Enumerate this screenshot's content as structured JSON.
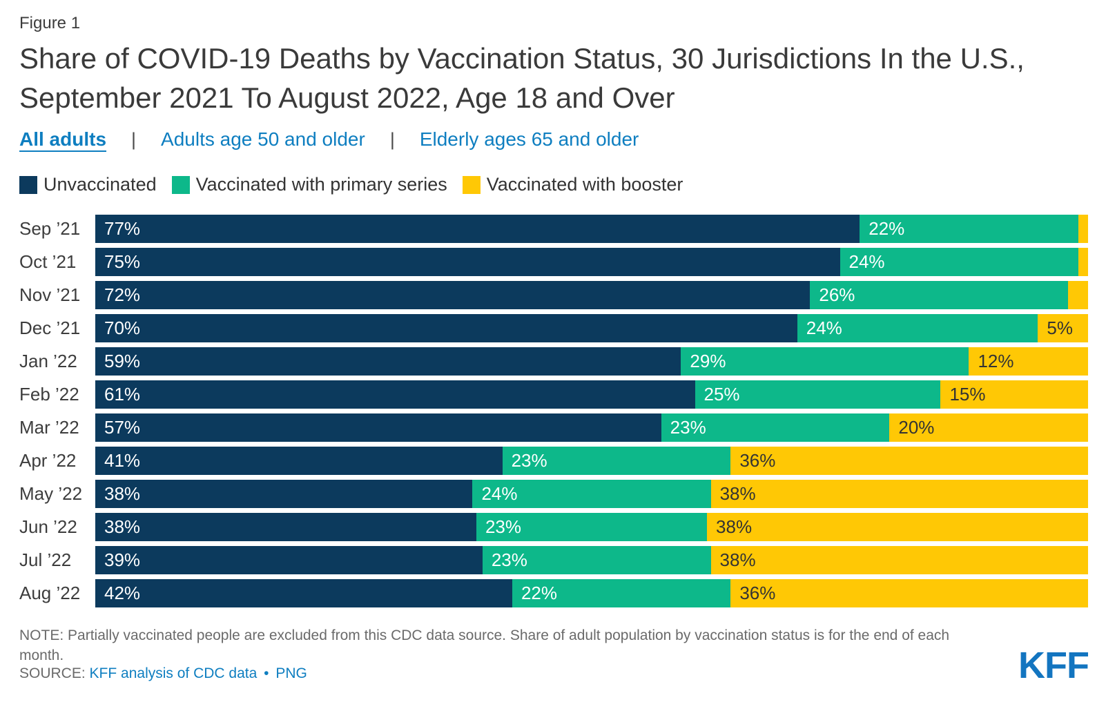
{
  "figure_label": "Figure 1",
  "title": "Share of COVID-19 Deaths by Vaccination Status, 30 Jurisdictions In the U.S., September 2021 To August 2022, Age 18 and Over",
  "tab_separator": "|",
  "tabs": [
    {
      "label": "All adults",
      "active": true
    },
    {
      "label": "Adults age 50 and older",
      "active": false
    },
    {
      "label": "Elderly ages 65 and older",
      "active": false
    }
  ],
  "legend": [
    {
      "label": "Unvaccinated",
      "color": "#0c3a5d"
    },
    {
      "label": "Vaccinated with primary series",
      "color": "#0db88a"
    },
    {
      "label": "Vaccinated with booster",
      "color": "#ffc805"
    }
  ],
  "chart_data": {
    "type": "bar",
    "orientation": "horizontal",
    "stacked": true,
    "xlim": [
      0,
      100
    ],
    "unit": "%",
    "categories": [
      "Sep ’21",
      "Oct ’21",
      "Nov ’21",
      "Dec ’21",
      "Jan ’22",
      "Feb ’22",
      "Mar ’22",
      "Apr ’22",
      "May ’22",
      "Jun ’22",
      "Jul ’22",
      "Aug ’22"
    ],
    "series": [
      {
        "key": "unvaccinated",
        "name": "Unvaccinated",
        "color": "#0c3a5d",
        "label_color": "#ffffff",
        "values": [
          77,
          75,
          72,
          70,
          59,
          61,
          57,
          41,
          38,
          38,
          39,
          42
        ],
        "labels": [
          "77%",
          "75%",
          "72%",
          "70%",
          "59%",
          "61%",
          "57%",
          "41%",
          "38%",
          "38%",
          "39%",
          "42%"
        ]
      },
      {
        "key": "primary-series",
        "name": "Vaccinated with primary series",
        "color": "#0db88a",
        "label_color": "#ffffff",
        "values": [
          22,
          24,
          26,
          24,
          29,
          25,
          23,
          23,
          24,
          23,
          23,
          22
        ],
        "labels": [
          "22%",
          "24%",
          "26%",
          "24%",
          "29%",
          "25%",
          "23%",
          "23%",
          "24%",
          "23%",
          "23%",
          "22%"
        ]
      },
      {
        "key": "booster",
        "name": "Vaccinated with booster",
        "color": "#ffc805",
        "label_color": "#333333",
        "values": [
          1,
          1,
          2,
          5,
          12,
          15,
          20,
          36,
          38,
          38,
          38,
          36
        ],
        "labels": [
          "",
          "",
          "",
          "5%",
          "12%",
          "15%",
          "20%",
          "36%",
          "38%",
          "38%",
          "38%",
          "36%"
        ]
      }
    ]
  },
  "footer": {
    "note_label": "NOTE:",
    "note": "Partially vaccinated people are excluded from this CDC data source. Share of adult population by vaccination status is for the end of each month.",
    "source_label": "SOURCE:",
    "source_link": "KFF analysis of CDC data",
    "separator": "•",
    "source_link2": "PNG",
    "logo": "KFF"
  }
}
